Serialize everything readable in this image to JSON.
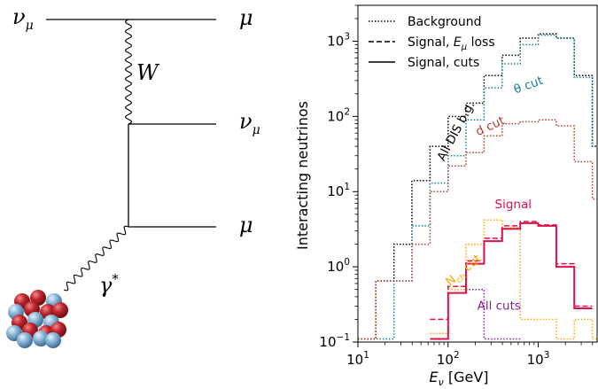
{
  "diagram": {
    "labels": {
      "nu_in": "ν",
      "nu_in_sub": "μ",
      "mu_top": "μ",
      "W": "W",
      "nu_out": "ν",
      "nu_out_sub": "μ",
      "mu_bottom": "μ",
      "gamma": "γ",
      "gamma_sup": "*"
    },
    "colors": {
      "nucleus_red": "#c0272d",
      "nucleus_blue": "#8bb8da"
    }
  },
  "chart_data": {
    "type": "step-histogram",
    "xscale": "log",
    "yscale": "log",
    "xlim": [
      10,
      4500
    ],
    "ylim": [
      0.1,
      3000
    ],
    "xlabel": "E",
    "xlabel_sub": "ν",
    "xlabel_unit": " [GeV]",
    "ylabel": "Interacting neutrinos",
    "xticks": [
      {
        "value": 10,
        "base": "10",
        "exp": "1"
      },
      {
        "value": 100,
        "base": "10",
        "exp": "2"
      },
      {
        "value": 1000,
        "base": "10",
        "exp": "3"
      }
    ],
    "yticks": [
      {
        "value": 0.1,
        "base": "10",
        "exp": "−1"
      },
      {
        "value": 1,
        "base": "10",
        "exp": "0"
      },
      {
        "value": 10,
        "base": "10",
        "exp": "1"
      },
      {
        "value": 100,
        "base": "10",
        "exp": "2"
      },
      {
        "value": 1000,
        "base": "10",
        "exp": "3"
      }
    ],
    "bin_edges": [
      10,
      15.8,
      25.1,
      39.8,
      63.1,
      100,
      158,
      251,
      398,
      631,
      1000,
      1585,
      2512,
      3981,
      4500
    ],
    "legend": {
      "placement": "top-left",
      "entries": [
        {
          "label": "Background",
          "style": "dotted"
        },
        {
          "label": "Signal, ",
          "math": "E",
          "math_sub": "μ",
          "label_after": " loss",
          "style": "dashed"
        },
        {
          "label": "Signal, cuts",
          "style": "solid"
        }
      ]
    },
    "series": [
      {
        "label": "All DIS b.g.",
        "style": "dotted",
        "color": "#000000",
        "values": [
          0.11,
          0.65,
          2.0,
          14,
          40,
          100,
          150,
          350,
          650,
          1100,
          1250,
          1100,
          350,
          40
        ]
      },
      {
        "label": "θ cut",
        "style": "dotted",
        "color": "#17808a",
        "values": [
          0.11,
          0.11,
          0.65,
          3.5,
          13,
          30,
          90,
          240,
          500,
          900,
          1200,
          1100,
          330,
          40
        ]
      },
      {
        "label": "d cut",
        "style": "dotted",
        "color": "#b03a2e",
        "values": [
          0.11,
          0.65,
          0.65,
          2.0,
          10,
          22,
          33,
          55,
          80,
          85,
          90,
          75,
          25,
          8
        ]
      },
      {
        "label": "N",
        "label_sub": "ch",
        "label_after": " cut",
        "style": "dotted",
        "color": "#ffa500",
        "values": [
          null,
          null,
          null,
          null,
          0.13,
          0.5,
          2.0,
          4.2,
          3.3,
          0.2,
          0.2,
          0.11,
          0.2,
          0.11
        ]
      },
      {
        "label": "All cuts",
        "style": "dotted",
        "color": "#8b1a9a",
        "values": [
          null,
          null,
          null,
          null,
          null,
          null,
          0.5,
          0.11,
          0.11,
          null,
          null,
          null,
          null,
          null
        ]
      },
      {
        "label": "Signal",
        "style": "dashed",
        "color": "#e0104a",
        "values": [
          null,
          null,
          null,
          null,
          0.2,
          0.55,
          1.2,
          2.4,
          3.5,
          4.0,
          3.6,
          1.1,
          0.3,
          null
        ]
      },
      {
        "label": "",
        "style": "solid",
        "color": "#e0104a",
        "values": [
          null,
          null,
          null,
          null,
          0.11,
          0.45,
          1.1,
          2.2,
          3.2,
          3.8,
          3.5,
          1.0,
          0.28,
          null
        ]
      }
    ],
    "annotations": [
      {
        "text": "All DIS b.g.",
        "color": "#000000",
        "x": 90,
        "y": 25,
        "rotate": -62
      },
      {
        "text": "θ cut",
        "color": "#17808a",
        "x": 560,
        "y": 200,
        "rotate": -20
      },
      {
        "text": "d cut",
        "color": "#b03a2e",
        "x": 215,
        "y": 55,
        "rotate": -25
      },
      {
        "text": "Signal",
        "color": "#e0104a",
        "x": 330,
        "y": 6.0,
        "rotate": 0
      },
      {
        "text": "N",
        "sub": "ch",
        "after": " cut",
        "color": "#ffa500",
        "x": 105,
        "y": 0.55,
        "rotate": -40
      },
      {
        "text": "All cuts",
        "color": "#8b1a9a",
        "x": 210,
        "y": 0.27,
        "rotate": 0
      }
    ]
  }
}
